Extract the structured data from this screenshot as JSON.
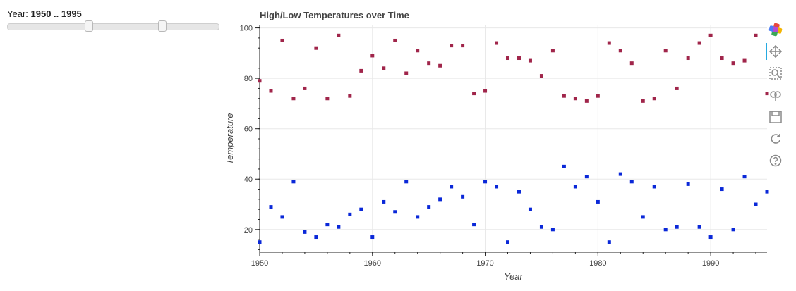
{
  "slider": {
    "title": "Year: ",
    "value_text": "1950 .. 1995",
    "start": 1900,
    "end": 2030,
    "value": [
      1950,
      1995
    ]
  },
  "toolbar": {
    "tools": [
      "bokeh-logo-icon",
      "pan-icon",
      "box-zoom-icon",
      "wheel-zoom-icon",
      "save-icon",
      "reset-icon",
      "help-icon"
    ],
    "active": "pan-icon"
  },
  "colors": {
    "high": "#a0254a",
    "low": "#0a28d8",
    "grid": "#e8e8e8"
  },
  "chart_data": {
    "type": "scatter",
    "title": "High/Low Temperatures over Time",
    "xlabel": "Year",
    "ylabel": "Temperature",
    "xlim": [
      1950,
      1995
    ],
    "ylim": [
      11,
      101
    ],
    "xticks": [
      1950,
      1960,
      1970,
      1980,
      1990
    ],
    "yticks": [
      20,
      40,
      60,
      80,
      100
    ],
    "grid": true,
    "series": [
      {
        "x": [
          1950,
          1951,
          1952,
          1953,
          1954,
          1955,
          1956,
          1957,
          1958,
          1959,
          1960,
          1961,
          1962,
          1963,
          1964,
          1965,
          1966,
          1967,
          1968,
          1969,
          1970,
          1971,
          1972,
          1973,
          1974,
          1975,
          1976,
          1977,
          1978,
          1979,
          1980,
          1981,
          1982,
          1983,
          1984,
          1985,
          1986,
          1987,
          1988,
          1989,
          1990,
          1991,
          1992,
          1993,
          1994,
          1995
        ],
        "y": [
          79,
          75,
          95,
          72,
          76,
          92,
          72,
          97,
          73,
          83,
          89,
          84,
          95,
          82,
          91,
          86,
          85,
          93,
          93,
          74,
          75,
          94,
          88,
          88,
          87,
          81,
          91,
          73,
          72,
          71,
          73,
          94,
          91,
          86,
          71,
          72,
          91,
          76,
          88,
          94,
          97,
          88,
          86,
          87,
          97,
          74
        ]
      },
      {
        "x": [
          1950,
          1951,
          1952,
          1953,
          1954,
          1955,
          1956,
          1957,
          1958,
          1959,
          1960,
          1961,
          1962,
          1963,
          1964,
          1965,
          1966,
          1967,
          1968,
          1969,
          1970,
          1971,
          1972,
          1973,
          1974,
          1975,
          1976,
          1977,
          1978,
          1979,
          1980,
          1981,
          1982,
          1983,
          1984,
          1985,
          1986,
          1987,
          1988,
          1989,
          1990,
          1991,
          1992,
          1993,
          1994,
          1995
        ],
        "y": [
          15,
          29,
          25,
          39,
          19,
          17,
          22,
          21,
          26,
          28,
          17,
          31,
          27,
          39,
          25,
          29,
          32,
          37,
          33,
          22,
          39,
          37,
          15,
          35,
          28,
          21,
          20,
          45,
          37,
          41,
          31,
          15,
          42,
          39,
          25,
          37,
          20,
          21,
          38,
          21,
          17,
          36,
          20,
          41,
          30,
          35
        ]
      }
    ]
  }
}
